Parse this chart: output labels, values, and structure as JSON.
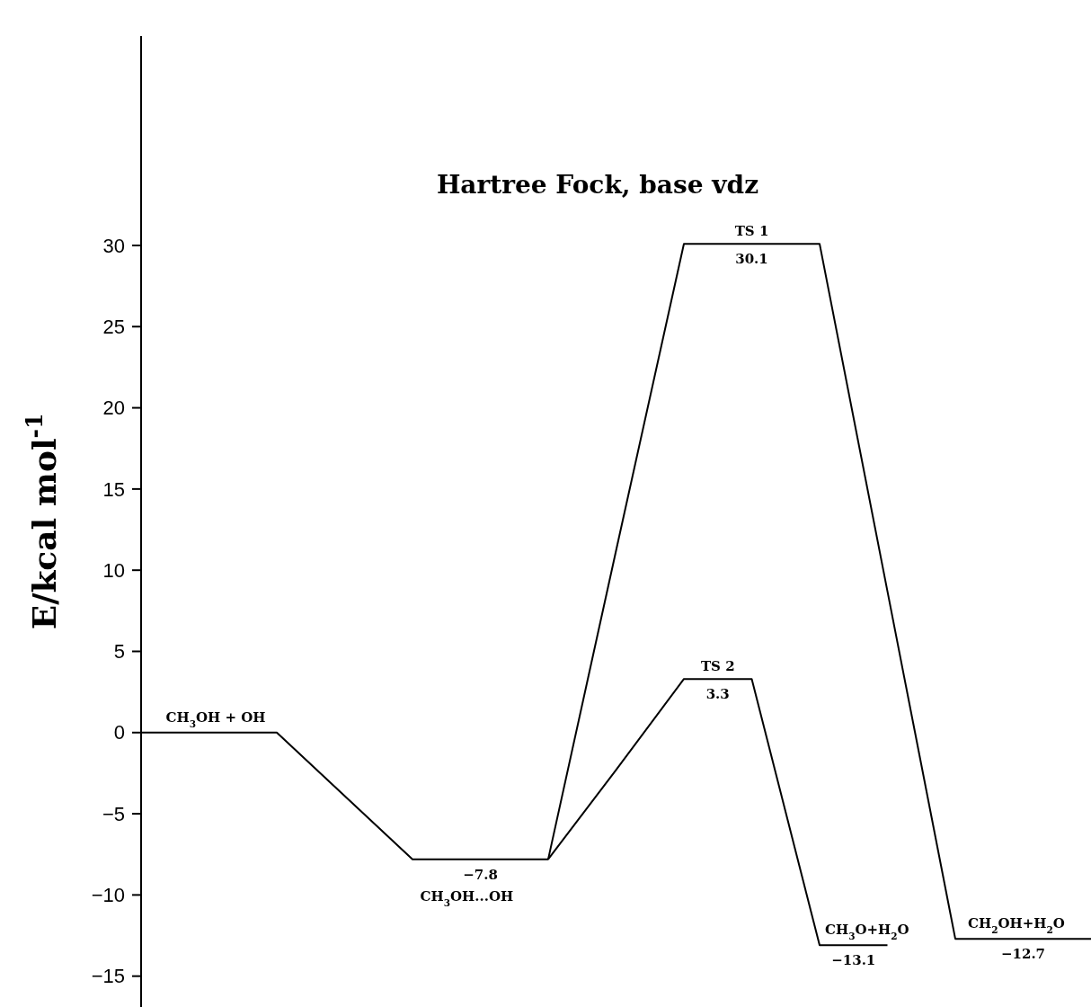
{
  "chart_data": {
    "type": "line",
    "title": "Hartree Fock, base vdz",
    "ylabel": "E/kcal mol$^{-1}$",
    "categories": [
      null,
      null,
      null,
      null,
      null,
      null,
      null,
      null,
      null,
      null,
      null,
      null,
      null,
      null,
      null
    ],
    "ylim": [
      -16.9,
      42.9
    ],
    "yticks": [
      {
        "value": -15,
        "label": "−15"
      },
      {
        "value": -10,
        "label": "−10"
      },
      {
        "value": -5,
        "label": "−5"
      },
      0,
      5,
      10,
      15,
      20,
      25,
      30
    ],
    "tick_labels": "y",
    "marker": "none",
    "line_style": "solid",
    "series": [
      {
        "color": "#000000",
        "values": [
          0,
          0,
          0,
          -3.9,
          -7.8,
          -7.8,
          -7.8,
          11.2,
          30.1,
          30.1,
          30.1,
          8.7,
          -12.7,
          -12.7,
          -12.7
        ],
        "value_labels": [
          null,
          null,
          null,
          null,
          null,
          "−7.8",
          null,
          null,
          null,
          "30.1",
          null,
          null,
          null,
          "−12.7",
          null
        ]
      },
      {
        "color": "#000000",
        "values": [
          null,
          null,
          null,
          null,
          null,
          null,
          -7.8,
          -2.3,
          3.3,
          3.3,
          -13.1,
          -13.1,
          null,
          null,
          null
        ],
        "value_labels": [
          null,
          null,
          null,
          null,
          null,
          null,
          null,
          null,
          "3.3",
          null,
          "−13.1",
          null,
          null,
          null,
          null
        ]
      }
    ],
    "annotations": [
      "CH$_{3}$OH + OH",
      "CH$_{3}$OH...OH",
      "TS 1",
      "TS 2",
      "CH$_{3}$O+H$_{2}$O",
      "CH$_{2}$OH+H$_{2}$O"
    ]
  }
}
